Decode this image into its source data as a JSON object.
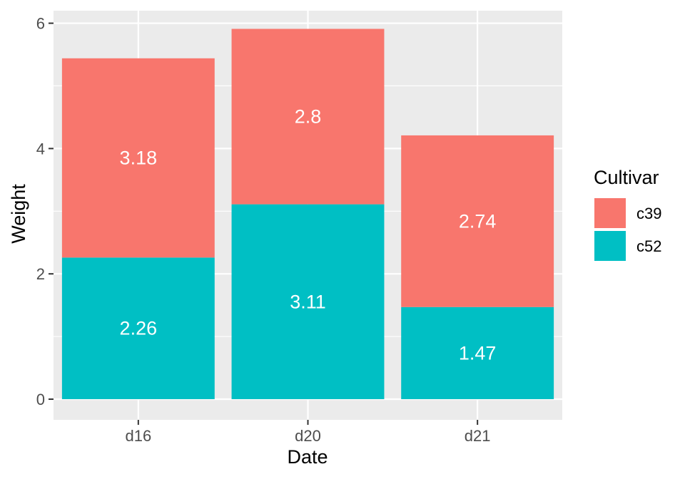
{
  "chart_data": {
    "type": "bar",
    "stacked": true,
    "categories": [
      "d16",
      "d20",
      "d21"
    ],
    "series": [
      {
        "name": "c52",
        "values": [
          2.26,
          3.11,
          1.47
        ],
        "color": "#00BFC4"
      },
      {
        "name": "c39",
        "values": [
          3.18,
          2.8,
          2.74
        ],
        "color": "#F8766D"
      }
    ],
    "data_labels": [
      [
        "2.26",
        "3.11",
        "1.47"
      ],
      [
        "3.18",
        "2.8",
        "2.74"
      ]
    ],
    "xlabel": "Date",
    "ylabel": "Weight",
    "ylim": [
      -0.33,
      6.2
    ],
    "yticks": [
      0,
      2,
      4,
      6
    ],
    "yticks_minor": [
      1,
      3,
      5
    ],
    "grid": true,
    "panel_background": "#EBEBEB",
    "grid_color": "#FFFFFF",
    "legend": {
      "title": "Cultivar",
      "position": "right",
      "entries": [
        {
          "label": "c39",
          "color": "#F8766D"
        },
        {
          "label": "c52",
          "color": "#00BFC4"
        }
      ]
    }
  }
}
